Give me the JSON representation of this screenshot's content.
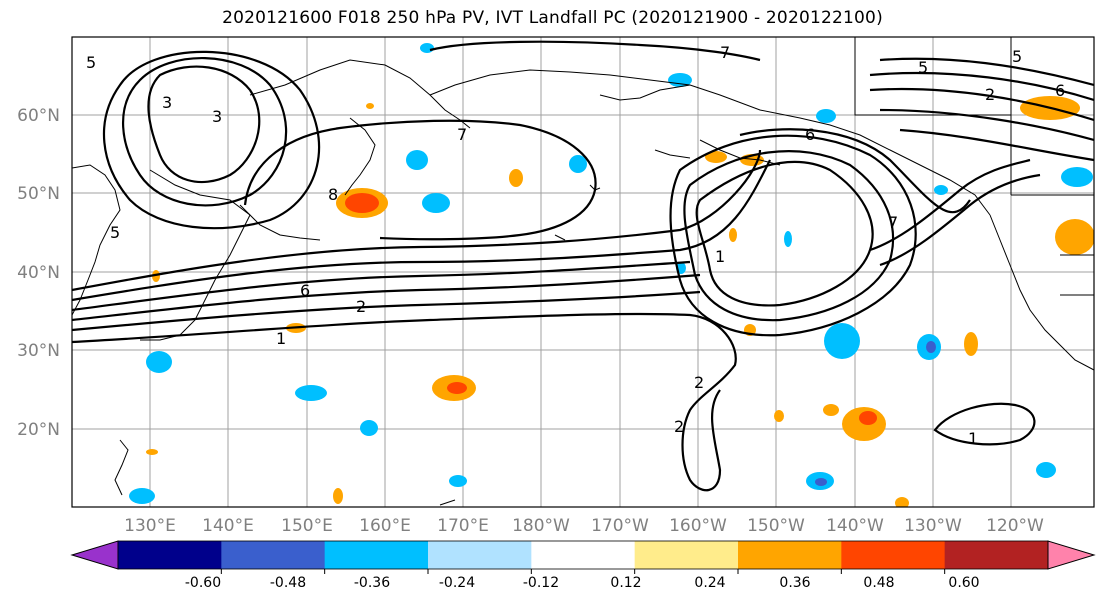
{
  "title": "2020121600 F018 250 hPa PV, IVT Landfall PC (2020121900 - 2020122100)",
  "lat_labels": [
    "60°N",
    "50°N",
    "40°N",
    "30°N",
    "20°N"
  ],
  "lon_labels": [
    "130°E",
    "140°E",
    "150°E",
    "160°E",
    "170°E",
    "180°W",
    "170°W",
    "160°W",
    "150°W",
    "140°W",
    "130°W",
    "120°W"
  ],
  "colorbar": {
    "colors": [
      "#9932cc",
      "#00008b",
      "#3a5fcd",
      "#00bfff",
      "#b0e2ff",
      "#ffffff",
      "#ffec8b",
      "#ffa500",
      "#ff4500",
      "#b22222",
      "#ff82ab"
    ],
    "tick_labels": [
      "-0.60",
      "-0.48",
      "-0.36",
      "-0.24",
      "-0.12",
      "0.12",
      "0.24",
      "0.36",
      "0.48",
      "0.60"
    ]
  },
  "contour_labels": [
    "5",
    "3",
    "3",
    "5",
    "7",
    "7",
    "6",
    "5",
    "2",
    "5",
    "6",
    "7",
    "1",
    "8",
    "6",
    "2",
    "1",
    "2",
    "2",
    "1"
  ]
}
